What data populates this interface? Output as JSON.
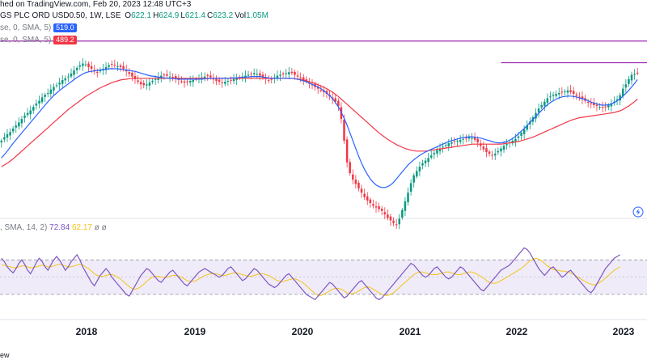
{
  "header": {
    "line1_prefix": "hed on TradingView.com, Feb 20, 2023 12:48 UTC+3",
    "line2_name": "GS PLC ORD USD0.50, 1W, LSE",
    "ohlc": [
      {
        "k": "O",
        "v": "622.1"
      },
      {
        "k": "H",
        "v": "624.9"
      },
      {
        "k": "L",
        "v": "621.4"
      },
      {
        "k": "C",
        "v": "623.2"
      },
      {
        "k": "Vol",
        "v": "1.05M"
      }
    ],
    "ma1_label": "se, 0, SMA, 5)",
    "ma1_value": "519.0",
    "ma2_label": "se, 0, SMA, 5)",
    "ma2_value": "489.2",
    "rsi_label": ", SMA, 14, 2)",
    "rsi_value": "72.84",
    "rsi_ma_value": "62.17",
    "rsi_tail": "ø  ø",
    "footer": "ew"
  },
  "colors": {
    "up": "#089981",
    "down": "#f23645",
    "ma_fast": "#2962ff",
    "ma_slow": "#f23645",
    "resistance": "#9c27b0",
    "rsi_line": "#7e57c2",
    "rsi_ma": "#f5c518",
    "rsi_band": "rgba(126,87,194,0.12)"
  },
  "chart_data": {
    "type": "candlestick",
    "x_ticks": [
      "2018",
      "2019",
      "2020",
      "2021",
      "2022",
      "2023"
    ],
    "price_ylim": [
      300,
      720
    ],
    "rsi_ylim": [
      15,
      90
    ],
    "rsi_bands": [
      30,
      70
    ],
    "rsi_midline": 50,
    "price_close": [
      470,
      478,
      485,
      490,
      498,
      505,
      512,
      520,
      528,
      534,
      540,
      548,
      556,
      562,
      570,
      576,
      580,
      588,
      594,
      598,
      604,
      610,
      614,
      618,
      625,
      632,
      638,
      644,
      648,
      646,
      640,
      636,
      630,
      628,
      632,
      636,
      640,
      644,
      646,
      644,
      642,
      640,
      636,
      630,
      624,
      618,
      612,
      606,
      600,
      598,
      600,
      604,
      608,
      612,
      616,
      620,
      622,
      620,
      618,
      616,
      612,
      610,
      606,
      604,
      606,
      608,
      610,
      612,
      614,
      616,
      618,
      620,
      616,
      612,
      608,
      606,
      604,
      606,
      608,
      610,
      612,
      614,
      616,
      618,
      620,
      622,
      624,
      626,
      624,
      620,
      616,
      612,
      610,
      612,
      616,
      620,
      622,
      624,
      626,
      628,
      626,
      622,
      618,
      614,
      610,
      606,
      602,
      598,
      594,
      590,
      586,
      582,
      578,
      572,
      566,
      560,
      550,
      520,
      470,
      420,
      395,
      380,
      370,
      360,
      350,
      340,
      332,
      326,
      320,
      316,
      312,
      308,
      300,
      292,
      286,
      280,
      276,
      290,
      310,
      330,
      350,
      372,
      390,
      400,
      410,
      418,
      424,
      430,
      436,
      442,
      448,
      452,
      456,
      460,
      464,
      466,
      468,
      470,
      472,
      474,
      476,
      478,
      476,
      472,
      466,
      458,
      450,
      444,
      440,
      436,
      440,
      446,
      452,
      458,
      462,
      466,
      470,
      474,
      480,
      488,
      496,
      505,
      514,
      524,
      534,
      544,
      552,
      560,
      568,
      572,
      576,
      578,
      580,
      582,
      584,
      586,
      582,
      578,
      574,
      570,
      566,
      562,
      558,
      555,
      552,
      550,
      548,
      546,
      548,
      552,
      556,
      560,
      565,
      575,
      590,
      600,
      612,
      622,
      624,
      626
    ],
    "price_ma_fast": [
      430,
      438,
      446,
      455,
      464,
      472,
      480,
      488,
      496,
      504,
      512,
      520,
      528,
      536,
      544,
      552,
      560,
      567,
      574,
      580,
      586,
      591,
      596,
      601,
      606,
      611,
      616,
      620,
      624,
      627,
      629,
      630,
      631,
      632,
      633,
      634,
      635,
      636,
      636,
      636,
      636,
      635,
      634,
      633,
      632,
      631,
      630,
      628,
      626,
      624,
      622,
      620,
      619,
      618,
      617,
      616,
      615,
      614,
      614,
      613,
      613,
      612,
      612,
      612,
      612,
      612,
      612,
      612,
      612,
      612,
      613,
      613,
      614,
      614,
      614,
      614,
      614,
      614,
      614,
      615,
      615,
      615,
      616,
      616,
      617,
      617,
      618,
      618,
      618,
      618,
      617,
      616,
      615,
      614,
      614,
      614,
      614,
      614,
      614,
      614,
      614,
      613,
      612,
      610,
      608,
      606,
      603,
      600,
      597,
      594,
      590,
      585,
      580,
      574,
      567,
      558,
      548,
      536,
      522,
      506,
      488,
      470,
      452,
      434,
      418,
      404,
      392,
      382,
      374,
      368,
      364,
      362,
      362,
      364,
      368,
      374,
      382,
      390,
      398,
      406,
      414,
      420,
      426,
      431,
      436,
      440,
      444,
      447,
      450,
      453,
      456,
      459,
      462,
      465,
      468,
      470,
      472,
      474,
      476,
      477,
      478,
      479,
      479,
      478,
      477,
      476,
      474,
      472,
      470,
      468,
      466,
      465,
      465,
      466,
      468,
      471,
      475,
      480,
      486,
      492,
      498,
      505,
      512,
      519,
      526,
      533,
      540,
      547,
      553,
      558,
      562,
      566,
      569,
      571,
      572,
      573,
      573,
      572,
      571,
      569,
      567,
      565,
      562,
      559,
      557,
      555,
      553,
      552,
      552,
      553,
      555,
      558,
      562,
      567,
      573,
      579,
      586,
      594,
      602,
      611
    ],
    "price_ma_slow": [
      410,
      414,
      418,
      423,
      428,
      434,
      440,
      446,
      452,
      458,
      464,
      470,
      476,
      482,
      488,
      494,
      500,
      506,
      512,
      518,
      524,
      530,
      536,
      542,
      547,
      552,
      557,
      562,
      567,
      572,
      576,
      580,
      584,
      588,
      592,
      595,
      598,
      601,
      604,
      606,
      608,
      610,
      611,
      612,
      613,
      614,
      614,
      614,
      614,
      614,
      614,
      614,
      614,
      614,
      614,
      614,
      614,
      614,
      614,
      614,
      614,
      614,
      614,
      614,
      614,
      614,
      614,
      614,
      614,
      614,
      614,
      614,
      614,
      614,
      614,
      614,
      614,
      614,
      614,
      614,
      614,
      614,
      614,
      614,
      614,
      614,
      614,
      614,
      614,
      614,
      614,
      614,
      614,
      614,
      614,
      614,
      614,
      614,
      614,
      614,
      614,
      613,
      612,
      611,
      610,
      608,
      606,
      604,
      602,
      599,
      596,
      593,
      590,
      586,
      582,
      577,
      572,
      566,
      560,
      554,
      548,
      542,
      536,
      530,
      524,
      518,
      512,
      506,
      500,
      494,
      488,
      483,
      478,
      473,
      469,
      465,
      461,
      458,
      455,
      452,
      450,
      448,
      447,
      446,
      446,
      446,
      446,
      447,
      448,
      449,
      450,
      451,
      452,
      453,
      454,
      455,
      456,
      457,
      458,
      459,
      460,
      461,
      462,
      462,
      462,
      462,
      462,
      462,
      462,
      462,
      462,
      462,
      462,
      463,
      464,
      465,
      466,
      467,
      468,
      470,
      472,
      474,
      476,
      478,
      481,
      484,
      487,
      490,
      493,
      496,
      499,
      502,
      505,
      508,
      511,
      514,
      517,
      519,
      521,
      523,
      524,
      525,
      526,
      527,
      528,
      529,
      530,
      531,
      532,
      533,
      534,
      535,
      537,
      539,
      542,
      546,
      550,
      555,
      560,
      566
    ],
    "rsi": [
      72,
      68,
      62,
      58,
      55,
      60,
      66,
      70,
      65,
      58,
      54,
      60,
      67,
      72,
      68,
      62,
      58,
      64,
      70,
      74,
      70,
      64,
      58,
      62,
      68,
      72,
      76,
      70,
      62,
      56,
      50,
      44,
      40,
      46,
      52,
      56,
      60,
      56,
      50,
      46,
      42,
      38,
      34,
      30,
      28,
      34,
      40,
      46,
      52,
      56,
      60,
      58,
      54,
      50,
      46,
      44,
      48,
      52,
      56,
      58,
      54,
      50,
      46,
      42,
      40,
      44,
      48,
      52,
      56,
      58,
      60,
      58,
      56,
      54,
      52,
      50,
      52,
      56,
      60,
      62,
      58,
      54,
      50,
      46,
      48,
      52,
      56,
      60,
      58,
      54,
      50,
      46,
      42,
      40,
      38,
      40,
      44,
      48,
      52,
      54,
      50,
      46,
      42,
      38,
      34,
      30,
      28,
      26,
      24,
      28,
      32,
      36,
      40,
      44,
      42,
      38,
      34,
      30,
      26,
      28,
      32,
      36,
      40,
      44,
      46,
      42,
      38,
      34,
      30,
      26,
      24,
      26,
      30,
      34,
      38,
      42,
      46,
      50,
      54,
      58,
      62,
      66,
      64,
      60,
      56,
      52,
      50,
      52,
      56,
      60,
      62,
      58,
      54,
      50,
      48,
      50,
      54,
      58,
      62,
      60,
      56,
      52,
      48,
      44,
      40,
      36,
      34,
      38,
      42,
      46,
      50,
      54,
      58,
      60,
      62,
      64,
      68,
      72,
      76,
      80,
      84,
      82,
      78,
      72,
      66,
      60,
      56,
      52,
      56,
      60,
      62,
      58,
      54,
      50,
      52,
      56,
      58,
      54,
      50,
      46,
      42,
      38,
      34,
      32,
      36,
      42,
      48,
      54,
      60,
      64,
      68,
      72,
      74,
      76
    ],
    "rsi_ma": [
      64,
      64,
      63,
      62,
      61,
      61,
      62,
      63,
      63,
      62,
      61,
      61,
      62,
      63,
      64,
      63,
      62,
      62,
      63,
      64,
      65,
      64,
      63,
      62,
      62,
      63,
      64,
      65,
      64,
      62,
      60,
      57,
      54,
      52,
      51,
      51,
      52,
      53,
      53,
      52,
      50,
      48,
      45,
      42,
      39,
      37,
      36,
      37,
      39,
      42,
      45,
      48,
      50,
      51,
      51,
      50,
      50,
      50,
      51,
      52,
      52,
      51,
      50,
      48,
      46,
      45,
      45,
      46,
      48,
      50,
      52,
      53,
      54,
      54,
      54,
      53,
      52,
      52,
      53,
      54,
      55,
      55,
      54,
      53,
      52,
      51,
      51,
      52,
      53,
      54,
      54,
      53,
      52,
      50,
      48,
      46,
      45,
      45,
      46,
      47,
      48,
      48,
      47,
      45,
      43,
      40,
      37,
      34,
      31,
      29,
      29,
      30,
      32,
      34,
      36,
      37,
      37,
      36,
      34,
      32,
      31,
      31,
      32,
      34,
      36,
      38,
      39,
      38,
      36,
      34,
      32,
      30,
      29,
      29,
      30,
      32,
      35,
      38,
      41,
      44,
      47,
      50,
      53,
      55,
      56,
      56,
      55,
      54,
      53,
      53,
      53,
      54,
      55,
      56,
      56,
      55,
      54,
      53,
      53,
      54,
      55,
      56,
      56,
      55,
      53,
      51,
      49,
      46,
      44,
      43,
      43,
      44,
      46,
      48,
      50,
      52,
      54,
      56,
      58,
      60,
      63,
      66,
      69,
      71,
      72,
      71,
      69,
      66,
      63,
      61,
      59,
      58,
      58,
      57,
      57,
      56,
      55,
      53,
      51,
      49,
      47,
      45,
      43,
      42,
      41,
      42,
      44,
      46,
      49,
      52,
      55,
      58,
      60,
      62
    ],
    "resistance_levels": [
      {
        "value": 700,
        "from": "start",
        "to": "end"
      },
      {
        "value": 650,
        "from": "2021-12",
        "to": "end"
      }
    ]
  }
}
